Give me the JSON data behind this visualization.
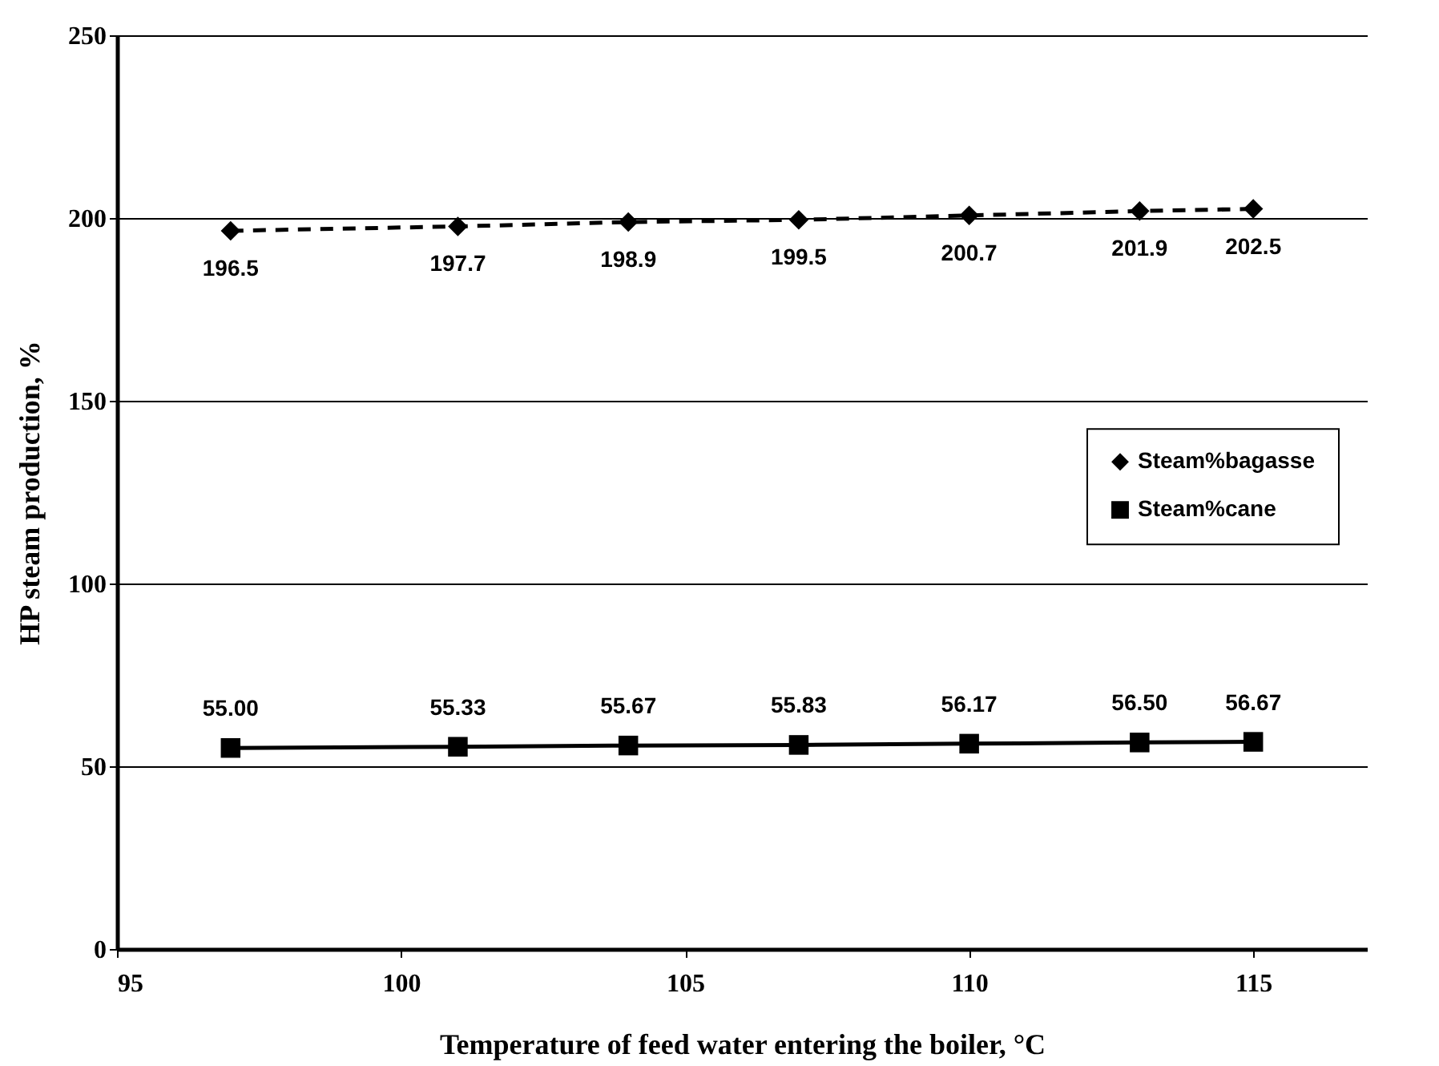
{
  "chart_data": {
    "type": "line",
    "xlabel": "Temperature of feed water entering the boiler, °C",
    "ylabel": "HP steam production, %",
    "x": [
      97,
      101,
      104,
      107,
      110,
      113,
      115
    ],
    "series": [
      {
        "name": "Steam%bagasse",
        "color": "#000000",
        "values": [
          196.5,
          197.7,
          198.9,
          199.5,
          200.7,
          201.9,
          202.5
        ],
        "marker": "diamond",
        "line_style": "dashed",
        "value_labels": [
          "196.5",
          "197.7",
          "198.9",
          "199.5",
          "200.7",
          "201.9",
          "202.5"
        ]
      },
      {
        "name": "Steam%cane",
        "color": "#000000",
        "values": [
          55.0,
          55.33,
          55.67,
          55.83,
          56.17,
          56.5,
          56.67
        ],
        "marker": "square",
        "line_style": "solid",
        "value_labels": [
          "55.00",
          "55.33",
          "55.67",
          "55.83",
          "56.17",
          "56.50",
          "56.67"
        ]
      }
    ],
    "xlim": [
      95,
      117
    ],
    "xticks": [
      95,
      100,
      105,
      110,
      115
    ],
    "ylim": [
      0,
      250
    ],
    "yticks": [
      0,
      50,
      100,
      150,
      200,
      250
    ],
    "grid": "y",
    "legend": "right"
  }
}
